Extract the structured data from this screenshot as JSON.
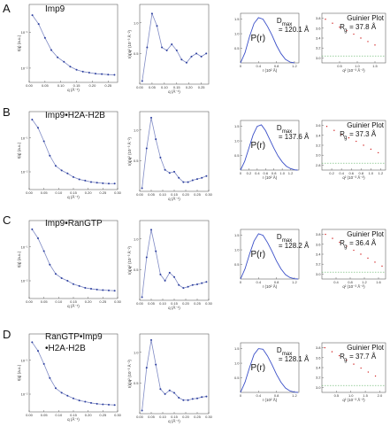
{
  "figure": {
    "panels": [
      {
        "letter": "A",
        "sample": "Imp9",
        "saxs": {
          "xlabel": "q (Å⁻¹)",
          "ylabel": "I(q) (a.u.)",
          "yticks": [
            "10⁻¹",
            "10⁻²"
          ],
          "xticks": [
            "0.00",
            "0.05",
            "0.10",
            "0.15",
            "0.20",
            "0.25"
          ]
        },
        "kratky": {
          "xlabel": "q (Å⁻¹)",
          "ylabel": "I(q)q² (10⁻³ Å⁻²)",
          "yticks": [
            "0.5",
            "1.0"
          ],
          "xticks": [
            "0.00",
            "0.05",
            "0.10",
            "0.15",
            "0.20",
            "0.25"
          ]
        },
        "pr": {
          "label": "P(r)",
          "dmax_label": "D",
          "dmax_sub": "max",
          "dmax_value": "= 120.1 Å",
          "xticks": [
            "0",
            "0.4",
            "0.8",
            "1.2"
          ],
          "yticks": [
            "0.5",
            "1.0",
            "1.5"
          ],
          "xlabel": "r (10² Å)"
        },
        "guinier": {
          "title": "Guinier Plot",
          "rg_label": "R",
          "rg_sub": "g",
          "rg_value": "= 37.8 Å",
          "yticks": [
            "3.0",
            "3.2",
            "3.4",
            "3.6",
            "3.8"
          ],
          "xticks": [
            "0.5",
            "1.0",
            "1.5"
          ],
          "xlabel": "q² (10⁻³ Å⁻²)"
        }
      },
      {
        "letter": "B",
        "sample": "Imp9•H2A-H2B",
        "saxs": {
          "xlabel": "q (Å⁻¹)",
          "ylabel": "I(q) (a.u.)",
          "yticks": [
            "10⁻¹",
            "10⁻²"
          ],
          "xticks": [
            "0.00",
            "0.05",
            "0.10",
            "0.15",
            "0.20",
            "0.25",
            "0.30"
          ]
        },
        "kratky": {
          "xlabel": "q (Å⁻¹)",
          "ylabel": "I(q)q² (10⁻³ Å⁻²)",
          "yticks": [
            "0.5",
            "1.0"
          ],
          "xticks": [
            "0.00",
            "0.05",
            "0.10",
            "0.15",
            "0.20",
            "0.25",
            "0.30"
          ]
        },
        "pr": {
          "label": "P(r)",
          "dmax_label": "D",
          "dmax_sub": "max",
          "dmax_value": "= 137.6 Å",
          "xticks": [
            "0",
            "0.2",
            "0.4",
            "0.6",
            "0.8",
            "1.0",
            "1.2"
          ],
          "yticks": [
            "0.5",
            "1.0",
            "1.5"
          ],
          "xlabel": "r (10² Å)"
        },
        "guinier": {
          "title": "Guinier Plot",
          "rg_label": "R",
          "rg_sub": "g",
          "rg_value": "= 37.3 Å",
          "yticks": [
            "2.8",
            "3.0",
            "3.2",
            "3.4",
            "3.6"
          ],
          "xticks": [
            "0.2",
            "0.4",
            "0.6",
            "0.8",
            "1.0",
            "1.2"
          ],
          "xlabel": "q² (10⁻³ Å⁻²)"
        }
      },
      {
        "letter": "C",
        "sample": "Imp9•RanGTP",
        "saxs": {
          "xlabel": "q (Å⁻¹)",
          "ylabel": "I(q) (a.u.)",
          "yticks": [
            "10⁻¹",
            "10⁻²"
          ],
          "xticks": [
            "0.00",
            "0.05",
            "0.10",
            "0.15",
            "0.20",
            "0.25",
            "0.30"
          ]
        },
        "kratky": {
          "xlabel": "q (Å⁻¹)",
          "ylabel": "I(q)q² (10⁻³ Å⁻²)",
          "yticks": [
            "0.5",
            "1.0"
          ],
          "xticks": [
            "0.00",
            "0.05",
            "0.10",
            "0.15",
            "0.20",
            "0.25",
            "0.30"
          ]
        },
        "pr": {
          "label": "P(r)",
          "dmax_label": "D",
          "dmax_sub": "max",
          "dmax_value": "= 128.2 Å",
          "xticks": [
            "0",
            "0.4",
            "0.8",
            "1.2"
          ],
          "yticks": [
            "0.5",
            "1.0",
            "1.5"
          ],
          "xlabel": "r (10² Å)"
        },
        "guinier": {
          "title": "Guinier Plot",
          "rg_label": "R",
          "rg_sub": "g",
          "rg_value": "= 36.4 Å",
          "yticks": [
            "3.0",
            "3.2",
            "3.4",
            "3.6",
            "3.8"
          ],
          "xticks": [
            "0.4",
            "0.8",
            "1.2",
            "1.6"
          ],
          "xlabel": "q² (10⁻³ Å⁻²)"
        }
      },
      {
        "letter": "D",
        "sample_line1": "RanGTP•Imp9",
        "sample_line2": "•H2A-H2B",
        "saxs": {
          "xlabel": "q (Å⁻¹)",
          "ylabel": "I(q) (a.u.)",
          "yticks": [
            "10⁻¹",
            "10⁻²"
          ],
          "xticks": [
            "0.00",
            "0.05",
            "0.10",
            "0.15",
            "0.20",
            "0.25",
            "0.30"
          ]
        },
        "kratky": {
          "xlabel": "q (Å⁻¹)",
          "ylabel": "I(q)q² (10⁻³ Å⁻²)",
          "yticks": [
            "0.5",
            "1.0"
          ],
          "xticks": [
            "0.00",
            "0.05",
            "0.10",
            "0.15",
            "0.20",
            "0.25",
            "0.30"
          ]
        },
        "pr": {
          "label": "P(r)",
          "dmax_label": "D",
          "dmax_sub": "max",
          "dmax_value": "= 128.1 Å",
          "xticks": [
            "0",
            "0.4",
            "0.8",
            "1.2"
          ],
          "yticks": [
            "0.5",
            "1.0",
            "1.5"
          ],
          "xlabel": "r (10² Å)"
        },
        "guinier": {
          "title": "Guinier Plot",
          "rg_label": "R",
          "rg_sub": "g",
          "rg_value": "= 37.7 Å",
          "yticks": [
            "3.0",
            "3.2",
            "3.4",
            "3.6",
            "3.8"
          ],
          "xticks": [
            "0.5",
            "1.0",
            "1.5",
            "2.0"
          ],
          "xlabel": "q² (10⁻³ Å⁻²)"
        }
      }
    ]
  },
  "chart_data": [
    {
      "panel": "A",
      "type": "scatter",
      "xlabel": "q (Å⁻¹)",
      "ylabel": "I(q) (a.u.)",
      "yscale": "log",
      "xlim": [
        0,
        0.28
      ],
      "ylim": [
        0.004,
        0.6
      ],
      "color": "#2b3e9e",
      "x": [
        0.01,
        0.03,
        0.05,
        0.07,
        0.09,
        0.11,
        0.13,
        0.15,
        0.17,
        0.19,
        0.21,
        0.23,
        0.25,
        0.27
      ],
      "y": [
        0.3,
        0.17,
        0.07,
        0.032,
        0.02,
        0.015,
        0.011,
        0.009,
        0.008,
        0.0075,
        0.007,
        0.0068,
        0.0066,
        0.0065
      ]
    },
    {
      "panel": "A",
      "type": "scatter",
      "xlabel": "q (Å⁻¹)",
      "ylabel": "I(q)q² (10⁻³ Å⁻²)",
      "xlim": [
        0,
        0.28
      ],
      "ylim": [
        0,
        1.3
      ],
      "color": "#2b3e9e",
      "x": [
        0.01,
        0.03,
        0.05,
        0.07,
        0.09,
        0.11,
        0.13,
        0.15,
        0.17,
        0.19,
        0.21,
        0.23,
        0.25,
        0.27
      ],
      "y": [
        0.05,
        0.6,
        1.15,
        0.95,
        0.6,
        0.55,
        0.65,
        0.55,
        0.4,
        0.35,
        0.45,
        0.5,
        0.45,
        0.5
      ]
    },
    {
      "panel": "A",
      "type": "line",
      "xlabel": "r (10² Å)",
      "ylabel": "P(r)",
      "xlim": [
        0,
        1.3
      ],
      "ylim": [
        0,
        1.7
      ],
      "color": "#3a4fc8",
      "x": [
        0,
        0.1,
        0.2,
        0.3,
        0.4,
        0.5,
        0.6,
        0.7,
        0.8,
        0.9,
        1.0,
        1.1,
        1.2
      ],
      "y": [
        0,
        0.35,
        0.9,
        1.35,
        1.55,
        1.5,
        1.25,
        0.95,
        0.6,
        0.32,
        0.12,
        0.03,
        0
      ]
    },
    {
      "panel": "A",
      "type": "scatter",
      "xlabel": "q² (10⁻³ Å⁻²)",
      "ylabel": "ln I(q)",
      "xlim": [
        0,
        1.8
      ],
      "ylim": [
        2.9,
        3.9
      ],
      "color": "#d02020",
      "x": [
        0.1,
        0.3,
        0.5,
        0.7,
        0.9,
        1.1,
        1.3,
        1.5
      ],
      "y": [
        3.78,
        3.7,
        3.62,
        3.55,
        3.48,
        3.4,
        3.33,
        3.26
      ]
    },
    {
      "panel": "B",
      "type": "scatter",
      "xlabel": "q (Å⁻¹)",
      "ylabel": "I(q) (a.u.)",
      "yscale": "log",
      "xlim": [
        0,
        0.3
      ],
      "ylim": [
        0.003,
        0.6
      ],
      "color": "#2b3e9e",
      "x": [
        0.01,
        0.03,
        0.05,
        0.07,
        0.09,
        0.11,
        0.13,
        0.15,
        0.17,
        0.19,
        0.21,
        0.23,
        0.25,
        0.27,
        0.29
      ],
      "y": [
        0.35,
        0.2,
        0.08,
        0.03,
        0.015,
        0.011,
        0.009,
        0.007,
        0.006,
        0.0055,
        0.005,
        0.0048,
        0.0046,
        0.0045,
        0.0045
      ]
    },
    {
      "panel": "B",
      "type": "scatter",
      "xlabel": "q (Å⁻¹)",
      "ylabel": "I(q)q² (10⁻³ Å⁻²)",
      "xlim": [
        0,
        0.3
      ],
      "ylim": [
        0,
        1.3
      ],
      "color": "#2b3e9e",
      "x": [
        0.01,
        0.03,
        0.05,
        0.07,
        0.09,
        0.11,
        0.13,
        0.15,
        0.17,
        0.19,
        0.21,
        0.23,
        0.25,
        0.27,
        0.29
      ],
      "y": [
        0.05,
        0.7,
        1.2,
        0.85,
        0.55,
        0.35,
        0.3,
        0.32,
        0.22,
        0.15,
        0.15,
        0.18,
        0.2,
        0.22,
        0.25
      ]
    },
    {
      "panel": "B",
      "type": "line",
      "xlabel": "r (10² Å)",
      "ylabel": "P(r)",
      "xlim": [
        0,
        1.4
      ],
      "ylim": [
        0,
        1.7
      ],
      "color": "#3a4fc8",
      "x": [
        0,
        0.1,
        0.2,
        0.3,
        0.4,
        0.5,
        0.6,
        0.7,
        0.8,
        0.9,
        1.0,
        1.1,
        1.2,
        1.3,
        1.37
      ],
      "y": [
        0,
        0.3,
        0.75,
        1.2,
        1.5,
        1.55,
        1.35,
        1.05,
        0.75,
        0.48,
        0.28,
        0.13,
        0.05,
        0.01,
        0
      ]
    },
    {
      "panel": "B",
      "type": "scatter",
      "xlabel": "q² (10⁻³ Å⁻²)",
      "ylabel": "ln I(q)",
      "xlim": [
        0,
        1.3
      ],
      "ylim": [
        2.7,
        3.7
      ],
      "color": "#d02020",
      "x": [
        0.1,
        0.25,
        0.4,
        0.55,
        0.7,
        0.85,
        1.0,
        1.15
      ],
      "y": [
        3.58,
        3.5,
        3.42,
        3.35,
        3.28,
        3.2,
        3.12,
        3.05
      ]
    },
    {
      "panel": "C",
      "type": "scatter",
      "xlabel": "q (Å⁻¹)",
      "ylabel": "I(q) (a.u.)",
      "yscale": "log",
      "xlim": [
        0,
        0.3
      ],
      "ylim": [
        0.003,
        0.6
      ],
      "color": "#2b3e9e",
      "x": [
        0.01,
        0.03,
        0.05,
        0.07,
        0.09,
        0.11,
        0.13,
        0.15,
        0.17,
        0.19,
        0.21,
        0.23,
        0.25,
        0.27,
        0.29
      ],
      "y": [
        0.33,
        0.18,
        0.075,
        0.03,
        0.016,
        0.012,
        0.01,
        0.008,
        0.007,
        0.0062,
        0.0058,
        0.0055,
        0.0053,
        0.0052,
        0.0051
      ]
    },
    {
      "panel": "C",
      "type": "scatter",
      "xlabel": "q (Å⁻¹)",
      "ylabel": "I(q)q² (10⁻³ Å⁻²)",
      "xlim": [
        0,
        0.3
      ],
      "ylim": [
        0,
        1.3
      ],
      "color": "#2b3e9e",
      "x": [
        0.01,
        0.03,
        0.05,
        0.07,
        0.09,
        0.11,
        0.13,
        0.15,
        0.17,
        0.19,
        0.21,
        0.23,
        0.25,
        0.27,
        0.29
      ],
      "y": [
        0.05,
        0.7,
        1.15,
        0.8,
        0.42,
        0.32,
        0.45,
        0.38,
        0.25,
        0.2,
        0.22,
        0.25,
        0.26,
        0.28,
        0.3
      ]
    },
    {
      "panel": "C",
      "type": "line",
      "xlabel": "r (10² Å)",
      "ylabel": "P(r)",
      "xlim": [
        0,
        1.3
      ],
      "ylim": [
        0,
        1.7
      ],
      "color": "#3a4fc8",
      "x": [
        0,
        0.1,
        0.2,
        0.3,
        0.4,
        0.5,
        0.6,
        0.7,
        0.8,
        0.9,
        1.0,
        1.1,
        1.2,
        1.28
      ],
      "y": [
        0,
        0.35,
        0.85,
        1.3,
        1.55,
        1.5,
        1.25,
        0.95,
        0.62,
        0.35,
        0.15,
        0.05,
        0.01,
        0
      ]
    },
    {
      "panel": "C",
      "type": "scatter",
      "xlabel": "q² (10⁻³ Å⁻²)",
      "ylabel": "ln I(q)",
      "xlim": [
        0,
        1.8
      ],
      "ylim": [
        2.9,
        3.9
      ],
      "color": "#d02020",
      "x": [
        0.1,
        0.3,
        0.5,
        0.7,
        0.9,
        1.1,
        1.3,
        1.5,
        1.7
      ],
      "y": [
        3.8,
        3.72,
        3.64,
        3.56,
        3.48,
        3.4,
        3.32,
        3.24,
        3.16
      ]
    },
    {
      "panel": "D",
      "type": "scatter",
      "xlabel": "q (Å⁻¹)",
      "ylabel": "I(q) (a.u.)",
      "yscale": "log",
      "xlim": [
        0,
        0.3
      ],
      "ylim": [
        0.003,
        0.6
      ],
      "color": "#2b3e9e",
      "x": [
        0.01,
        0.03,
        0.05,
        0.07,
        0.09,
        0.11,
        0.13,
        0.15,
        0.17,
        0.19,
        0.21,
        0.23,
        0.25,
        0.27,
        0.29
      ],
      "y": [
        0.34,
        0.19,
        0.078,
        0.03,
        0.015,
        0.011,
        0.009,
        0.0075,
        0.0065,
        0.006,
        0.0055,
        0.0052,
        0.005,
        0.0049,
        0.0048
      ]
    },
    {
      "panel": "D",
      "type": "scatter",
      "xlabel": "q (Å⁻¹)",
      "ylabel": "I(q)q² (10⁻³ Å⁻²)",
      "xlim": [
        0,
        0.3
      ],
      "ylim": [
        0,
        1.3
      ],
      "color": "#2b3e9e",
      "x": [
        0.01,
        0.03,
        0.05,
        0.07,
        0.09,
        0.11,
        0.13,
        0.15,
        0.17,
        0.19,
        0.21,
        0.23,
        0.25,
        0.27,
        0.29
      ],
      "y": [
        0.05,
        0.75,
        1.2,
        0.8,
        0.4,
        0.32,
        0.38,
        0.34,
        0.26,
        0.22,
        0.22,
        0.24,
        0.25,
        0.27,
        0.28
      ]
    },
    {
      "panel": "D",
      "type": "line",
      "xlabel": "r (10² Å)",
      "ylabel": "P(r)",
      "xlim": [
        0,
        1.3
      ],
      "ylim": [
        0,
        1.7
      ],
      "color": "#3a4fc8",
      "x": [
        0,
        0.1,
        0.2,
        0.3,
        0.4,
        0.5,
        0.6,
        0.7,
        0.8,
        0.9,
        1.0,
        1.1,
        1.2,
        1.28
      ],
      "y": [
        0,
        0.35,
        0.85,
        1.3,
        1.5,
        1.48,
        1.25,
        0.95,
        0.62,
        0.35,
        0.15,
        0.05,
        0.01,
        0
      ]
    },
    {
      "panel": "D",
      "type": "scatter",
      "xlabel": "q² (10⁻³ Å⁻²)",
      "ylabel": "ln I(q)",
      "xlim": [
        0,
        2.2
      ],
      "ylim": [
        2.9,
        3.9
      ],
      "color": "#d02020",
      "x": [
        0.1,
        0.35,
        0.6,
        0.85,
        1.1,
        1.35,
        1.6,
        1.85
      ],
      "y": [
        3.8,
        3.72,
        3.64,
        3.55,
        3.47,
        3.39,
        3.31,
        3.23
      ]
    }
  ]
}
